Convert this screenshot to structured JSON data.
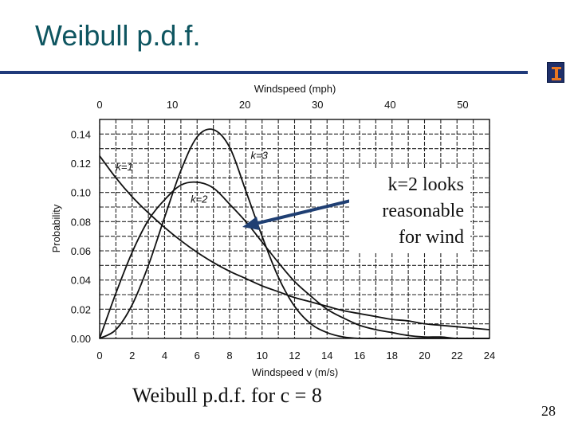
{
  "slide": {
    "title": "Weibull p.d.f.",
    "callout": [
      "k=2 looks",
      "reasonable",
      "for wind"
    ],
    "caption": "Weibull p.d.f. for c = 8",
    "page_number": "28"
  },
  "colors": {
    "title": "#0e5560",
    "rule": "#1f3a7a",
    "arrow": "#1f3f73",
    "curve": "#111111"
  },
  "chart_data": {
    "type": "line",
    "xlabel": "Windspeed v (m/s)",
    "x2label": "Windspeed (mph)",
    "ylabel": "Probability",
    "xlim": [
      0,
      24
    ],
    "ylim": [
      0,
      0.15
    ],
    "x_ticks": [
      "0",
      "2",
      "4",
      "6",
      "8",
      "10",
      "12",
      "14",
      "16",
      "18",
      "20",
      "22",
      "24"
    ],
    "x2_ticks": [
      "0",
      "10",
      "20",
      "30",
      "40",
      "50"
    ],
    "y_ticks": [
      "0.00",
      "0.02",
      "0.04",
      "0.06",
      "0.08",
      "0.10",
      "0.12",
      "0.14"
    ],
    "grid": true,
    "series": [
      {
        "name": "k=1",
        "x": [
          0,
          1,
          2,
          3,
          4,
          5,
          6,
          7,
          8,
          9,
          10,
          11,
          12,
          13,
          14,
          15,
          16,
          17,
          18,
          19,
          20,
          21,
          22,
          23,
          24
        ],
        "y": [
          0.125,
          0.11,
          0.097,
          0.086,
          0.076,
          0.067,
          0.059,
          0.052,
          0.046,
          0.041,
          0.036,
          0.032,
          0.028,
          0.025,
          0.022,
          0.019,
          0.017,
          0.015,
          0.013,
          0.012,
          0.01,
          0.009,
          0.008,
          0.007,
          0.006
        ]
      },
      {
        "name": "k=2",
        "x": [
          0,
          1,
          2,
          3,
          4,
          5,
          6,
          7,
          8,
          9,
          10,
          11,
          12,
          13,
          14,
          15,
          16,
          17,
          18,
          19,
          20,
          21,
          22,
          23,
          24
        ],
        "y": [
          0.0,
          0.031,
          0.059,
          0.081,
          0.095,
          0.105,
          0.107,
          0.103,
          0.092,
          0.08,
          0.066,
          0.052,
          0.039,
          0.029,
          0.02,
          0.014,
          0.009,
          0.006,
          0.004,
          0.002,
          0.001,
          0.001,
          0.0,
          0.0,
          0.0
        ]
      },
      {
        "name": "k=3",
        "x": [
          0,
          1,
          2,
          3,
          4,
          5,
          6,
          7,
          8,
          9,
          10,
          11,
          12,
          13,
          14,
          15,
          16,
          17,
          18,
          19,
          20,
          21,
          22,
          23,
          24
        ],
        "y": [
          0.0,
          0.006,
          0.023,
          0.05,
          0.083,
          0.115,
          0.138,
          0.143,
          0.131,
          0.101,
          0.07,
          0.042,
          0.022,
          0.01,
          0.004,
          0.001,
          0.0,
          0.0,
          0.0,
          0.0,
          0.0,
          0.0,
          0.0,
          0.0,
          0.0
        ]
      }
    ]
  }
}
